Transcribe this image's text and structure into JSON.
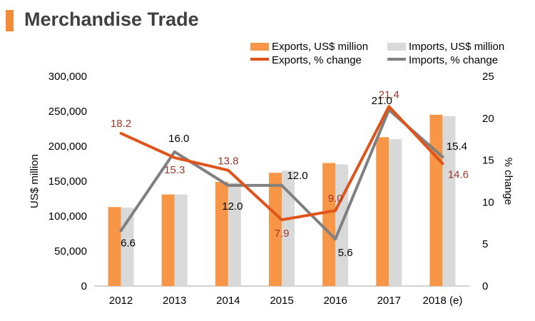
{
  "header": {
    "title": "Merchandise Trade"
  },
  "colors": {
    "accent": "#F28C38",
    "exports_bar": "#F79646",
    "imports_bar": "#D9D9D9",
    "exports_line": "#E0541B",
    "imports_line": "#808080",
    "exports_label": "#A0372A",
    "text": "#000000"
  },
  "chart_data": {
    "type": "bar",
    "categories": [
      "2012",
      "2013",
      "2014",
      "2015",
      "2016",
      "2017",
      "2018 (e)"
    ],
    "ylabel": "US$ million",
    "y2label": "% change",
    "ylim": [
      0,
      300000
    ],
    "y2lim": [
      0,
      25
    ],
    "y_ticks": [
      "0",
      "50,000",
      "100,000",
      "150,000",
      "200,000",
      "250,000",
      "300,000"
    ],
    "y2_ticks": [
      "0",
      "5",
      "10",
      "15",
      "20",
      "25"
    ],
    "legend_position": "top-right",
    "series": [
      {
        "name": "Exports, US$ million",
        "kind": "bar",
        "axis": "left",
        "values": [
          113000,
          131000,
          149000,
          162000,
          176000,
          213000,
          245000
        ]
      },
      {
        "name": "Imports, US$ million",
        "kind": "bar",
        "axis": "left",
        "values": [
          112000,
          131000,
          148000,
          165000,
          174000,
          210000,
          243000
        ]
      },
      {
        "name": "Exports, % change",
        "kind": "line",
        "axis": "right",
        "values": [
          18.2,
          15.3,
          13.8,
          7.9,
          9.0,
          21.4,
          14.6
        ],
        "labels": [
          "18.2",
          "15.3",
          "13.8",
          "7.9",
          "9.0",
          "21.4",
          "14.6"
        ]
      },
      {
        "name": "Imports, % change",
        "kind": "line",
        "axis": "right",
        "values": [
          6.6,
          16.0,
          12.0,
          12.0,
          5.6,
          21.0,
          15.4
        ],
        "labels": [
          "6.6",
          "16.0",
          "12.0",
          "12.0",
          "5.6",
          "21.0",
          "15.4"
        ]
      }
    ]
  }
}
